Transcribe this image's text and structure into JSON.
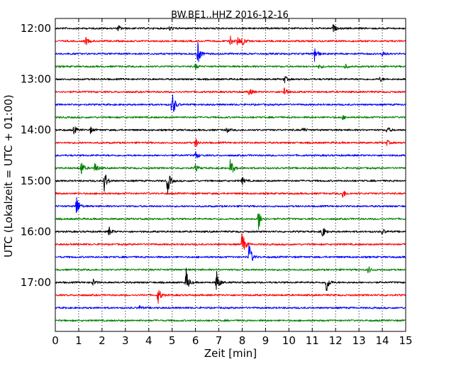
{
  "chart_data": {
    "type": "line",
    "title": "BW.BE1..HHZ 2016-12-16",
    "xlabel": "Zeit  [min]",
    "ylabel": "UTC (Lokalzeit = UTC + 01:00)",
    "xlim": [
      0,
      15
    ],
    "x_ticks": [
      "0",
      "1",
      "2",
      "3",
      "4",
      "5",
      "6",
      "7",
      "8",
      "9",
      "10",
      "11",
      "12",
      "13",
      "14",
      "15"
    ],
    "y_ticks": [
      {
        "row": 0,
        "label": "12:00"
      },
      {
        "row": 4,
        "label": "13:00"
      },
      {
        "row": 8,
        "label": "14:00"
      },
      {
        "row": 12,
        "label": "15:00"
      },
      {
        "row": 16,
        "label": "16:00"
      },
      {
        "row": 20,
        "label": "17:00"
      }
    ],
    "grid": "vertical-dotted",
    "row_interval_minutes": 15,
    "colors": [
      "#000000",
      "#ff0000",
      "#0000ff",
      "#008000"
    ],
    "traces": [
      {
        "start": "12:00",
        "color": "#000000",
        "events": [
          [
            2.7,
            0.25
          ],
          [
            4.9,
            0.2
          ],
          [
            11.9,
            0.3
          ]
        ]
      },
      {
        "start": "12:15",
        "color": "#ff0000",
        "events": [
          [
            1.3,
            0.35
          ],
          [
            7.5,
            0.35
          ],
          [
            7.8,
            0.35
          ],
          [
            8.0,
            0.4
          ]
        ]
      },
      {
        "start": "12:30",
        "color": "#0000ff",
        "events": [
          [
            6.1,
            0.9
          ],
          [
            11.1,
            0.7
          ],
          [
            14.0,
            0.3
          ]
        ]
      },
      {
        "start": "12:45",
        "color": "#008000",
        "events": [
          [
            6.0,
            0.2
          ],
          [
            11.3,
            0.2
          ],
          [
            12.4,
            0.2
          ]
        ]
      },
      {
        "start": "13:00",
        "color": "#000000",
        "events": [
          [
            9.8,
            0.3
          ],
          [
            13.9,
            0.2
          ]
        ]
      },
      {
        "start": "13:15",
        "color": "#ff0000",
        "events": [
          [
            8.3,
            0.35
          ],
          [
            9.8,
            0.5
          ]
        ]
      },
      {
        "start": "13:30",
        "color": "#0000ff",
        "events": [
          [
            5.0,
            1.3
          ]
        ]
      },
      {
        "start": "13:45",
        "color": "#008000",
        "events": [
          [
            12.3,
            0.15
          ]
        ]
      },
      {
        "start": "14:00",
        "color": "#000000",
        "events": [
          [
            0.8,
            0.35
          ],
          [
            1.5,
            0.25
          ],
          [
            7.3,
            0.3
          ],
          [
            10.6,
            0.25
          ],
          [
            14.2,
            0.3
          ]
        ]
      },
      {
        "start": "14:15",
        "color": "#ff0000",
        "events": [
          [
            6.0,
            0.4
          ],
          [
            14.2,
            0.2
          ]
        ]
      },
      {
        "start": "14:30",
        "color": "#0000ff",
        "events": [
          [
            6.0,
            0.35
          ]
        ]
      },
      {
        "start": "14:45",
        "color": "#008000",
        "events": [
          [
            1.1,
            0.7
          ],
          [
            1.7,
            0.5
          ],
          [
            6.0,
            0.3
          ],
          [
            7.5,
            0.9
          ]
        ]
      },
      {
        "start": "15:00",
        "color": "#000000",
        "events": [
          [
            2.1,
            1.0
          ],
          [
            4.8,
            1.1
          ],
          [
            8.0,
            0.3
          ]
        ]
      },
      {
        "start": "15:15",
        "color": "#ff0000",
        "events": [
          [
            12.3,
            0.4
          ]
        ]
      },
      {
        "start": "15:30",
        "color": "#0000ff",
        "events": [
          [
            0.9,
            1.0
          ]
        ]
      },
      {
        "start": "15:45",
        "color": "#008000",
        "events": [
          [
            8.7,
            0.9
          ]
        ]
      },
      {
        "start": "16:00",
        "color": "#000000",
        "events": [
          [
            2.3,
            0.4
          ],
          [
            11.4,
            0.7
          ],
          [
            14.0,
            0.25
          ]
        ]
      },
      {
        "start": "16:15",
        "color": "#ff0000",
        "events": [
          [
            8.0,
            1.2
          ]
        ]
      },
      {
        "start": "16:30",
        "color": "#0000ff",
        "events": [
          [
            8.3,
            1.2
          ]
        ]
      },
      {
        "start": "16:45",
        "color": "#008000",
        "events": [
          [
            13.4,
            0.3
          ]
        ]
      },
      {
        "start": "17:00",
        "color": "#000000",
        "events": [
          [
            1.6,
            0.3
          ],
          [
            5.6,
            1.1
          ],
          [
            6.9,
            1.0
          ],
          [
            11.6,
            0.9
          ]
        ]
      },
      {
        "start": "17:15",
        "color": "#ff0000",
        "events": [
          [
            4.4,
            0.7
          ]
        ]
      },
      {
        "start": "17:30",
        "color": "#0000ff",
        "events": [
          [
            3.6,
            0.15
          ]
        ]
      },
      {
        "start": "17:45",
        "color": "#008000",
        "events": []
      }
    ]
  }
}
